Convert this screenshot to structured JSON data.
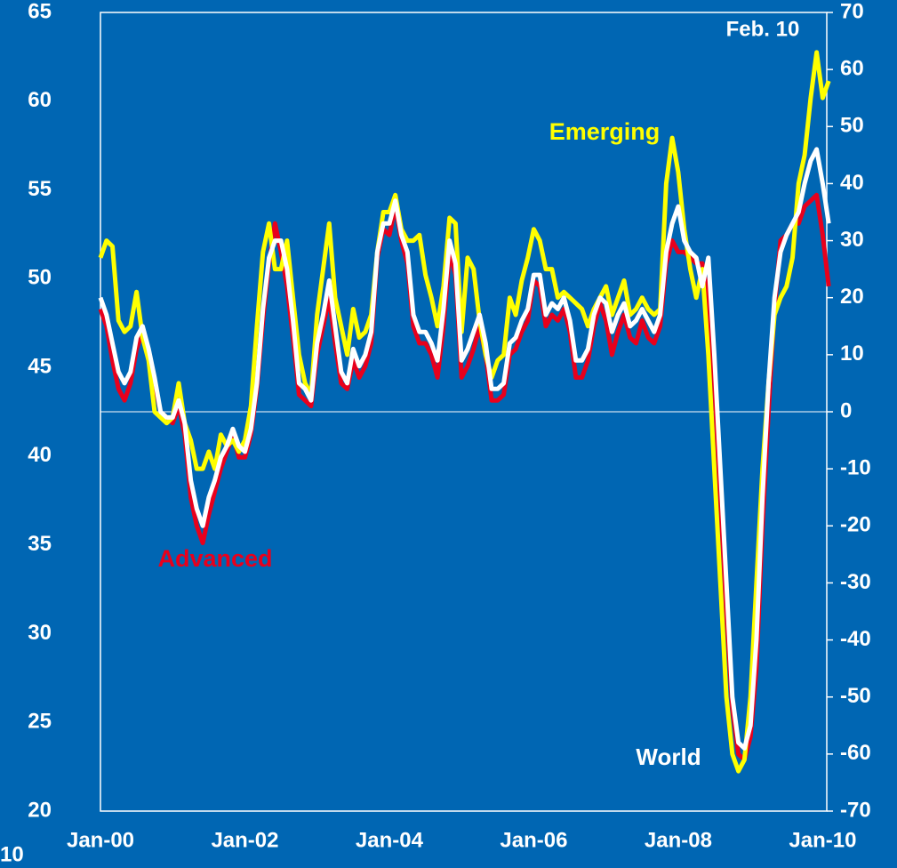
{
  "chart_data": {
    "type": "line",
    "categories": [
      "Jan-00",
      null,
      null,
      null,
      null,
      null,
      null,
      null,
      null,
      null,
      null,
      null,
      null,
      null,
      null,
      null,
      null,
      null,
      null,
      null,
      null,
      null,
      null,
      null,
      "Jan-02",
      null,
      null,
      null,
      null,
      null,
      null,
      null,
      null,
      null,
      null,
      null,
      null,
      null,
      null,
      null,
      null,
      null,
      null,
      null,
      null,
      null,
      null,
      null,
      "Jan-04",
      null,
      null,
      null,
      null,
      null,
      null,
      null,
      null,
      null,
      null,
      null,
      null,
      null,
      null,
      null,
      null,
      null,
      null,
      null,
      null,
      null,
      null,
      null,
      "Jan-06",
      null,
      null,
      null,
      null,
      null,
      null,
      null,
      null,
      null,
      null,
      null,
      null,
      null,
      null,
      null,
      null,
      null,
      null,
      null,
      null,
      null,
      null,
      null,
      "Jan-08",
      null,
      null,
      null,
      null,
      null,
      null,
      null,
      null,
      null,
      null,
      null,
      null,
      null,
      null,
      null,
      null,
      null,
      null,
      null,
      null,
      null,
      null,
      null,
      "Jan-10",
      null
    ],
    "ylim": [
      20,
      65
    ],
    "yticks": [
      20,
      25,
      30,
      35,
      40,
      45,
      50,
      55,
      60,
      65
    ],
    "y2lim": [
      -70,
      70
    ],
    "y2ticks": [
      -70,
      -60,
      -50,
      -40,
      -30,
      -20,
      -10,
      0,
      10,
      20,
      30,
      40,
      50,
      60,
      70
    ],
    "series": [
      {
        "name": "Emerging",
        "color": "#ffff00",
        "axis": "y2",
        "values": [
          27,
          30,
          29,
          16,
          14,
          15,
          21,
          13,
          9,
          0,
          -1,
          -2,
          -1,
          5,
          -2,
          -5,
          -10,
          -10,
          -7,
          -10,
          -4,
          -6,
          -5,
          -7,
          -5,
          1,
          15,
          28,
          33,
          25,
          25,
          30,
          20,
          10,
          5,
          3,
          17,
          25,
          33,
          20,
          15,
          10,
          18,
          13,
          14,
          17,
          28,
          35,
          35,
          38,
          32,
          30,
          30,
          31,
          24,
          20,
          15,
          22,
          34,
          33,
          14,
          27,
          25,
          16,
          10,
          6,
          9,
          10,
          20,
          17,
          23,
          27,
          32,
          30,
          25,
          25,
          20,
          21,
          20,
          19,
          18,
          15,
          18,
          20,
          22,
          17,
          20,
          23,
          17,
          18,
          20,
          18,
          17,
          18,
          40,
          48,
          42,
          32,
          25,
          20,
          25,
          10,
          -10,
          -30,
          -50,
          -60,
          -63,
          -61,
          -50,
          -30,
          -10,
          5,
          17,
          20,
          22,
          27,
          40,
          45,
          55,
          63,
          55,
          58
        ]
      },
      {
        "name": "Advanced",
        "color": "#e8001c",
        "axis": "y2",
        "values": [
          18,
          15,
          9,
          4,
          2,
          5,
          11,
          14,
          9,
          5,
          0,
          -1,
          -2,
          1,
          -4,
          -15,
          -20,
          -23,
          -18,
          -14,
          -10,
          -7,
          -4,
          -8,
          -8,
          -4,
          4,
          16,
          26,
          33,
          28,
          22,
          13,
          3,
          2,
          1,
          10,
          15,
          20,
          12,
          5,
          4,
          9,
          6,
          8,
          12,
          27,
          32,
          31,
          36,
          30,
          26,
          15,
          12,
          12,
          10,
          6,
          15,
          28,
          24,
          6,
          8,
          11,
          15,
          10,
          2,
          2,
          3,
          10,
          11,
          14,
          16,
          23,
          22,
          15,
          17,
          16,
          18,
          14,
          6,
          6,
          9,
          15,
          19,
          16,
          10,
          14,
          17,
          13,
          12,
          16,
          13,
          12,
          15,
          26,
          30,
          28,
          28,
          27,
          26,
          26,
          20,
          5,
          -15,
          -35,
          -52,
          -60,
          -61,
          -57,
          -45,
          -20,
          0,
          18,
          30,
          31,
          33,
          33,
          36,
          37,
          38,
          31,
          22
        ]
      },
      {
        "name": "World",
        "color": "#ffffff",
        "axis": "y2",
        "values": [
          20,
          17,
          12,
          7,
          5,
          7,
          13,
          15,
          11,
          6,
          0,
          -1,
          -1,
          2,
          -2,
          -12,
          -17,
          -20,
          -15,
          -12,
          -8,
          -6,
          -3,
          -6,
          -7,
          -3,
          5,
          18,
          27,
          30,
          30,
          25,
          16,
          5,
          4,
          2,
          12,
          17,
          23,
          15,
          7,
          5,
          11,
          8,
          10,
          14,
          28,
          33,
          33,
          37,
          31,
          28,
          17,
          14,
          14,
          12,
          9,
          18,
          30,
          26,
          9,
          11,
          14,
          17,
          12,
          4,
          4,
          5,
          12,
          13,
          16,
          18,
          24,
          24,
          17,
          19,
          18,
          20,
          16,
          9,
          9,
          11,
          17,
          20,
          19,
          14,
          17,
          19,
          15,
          16,
          18,
          16,
          14,
          17,
          28,
          33,
          36,
          30,
          28,
          27,
          22,
          27,
          10,
          -10,
          -30,
          -50,
          -58,
          -59,
          -55,
          -40,
          -15,
          5,
          20,
          28,
          31,
          33,
          35,
          40,
          44,
          46,
          40,
          33
        ]
      }
    ],
    "annotations": [
      "Emerging",
      "Advanced",
      "World",
      "Feb. 10",
      "10"
    ]
  }
}
